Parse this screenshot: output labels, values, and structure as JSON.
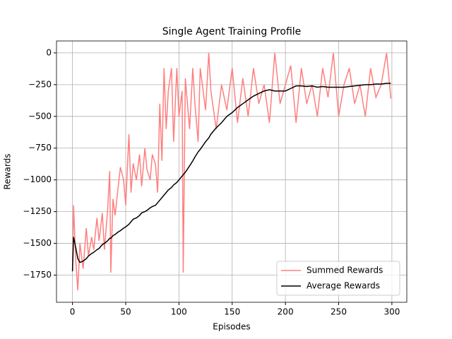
{
  "chart_data": {
    "type": "line",
    "title": "Single Agent Training Profile",
    "xlabel": "Episodes",
    "ylabel": "Rewards",
    "x": [
      0,
      1,
      3,
      5,
      7,
      10,
      13,
      15,
      18,
      20,
      23,
      25,
      28,
      30,
      33,
      35,
      36,
      38,
      40,
      43,
      45,
      48,
      50,
      53,
      55,
      57,
      60,
      63,
      65,
      68,
      70,
      73,
      75,
      78,
      80,
      82,
      84,
      86,
      88,
      90,
      93,
      95,
      98,
      100,
      103,
      104,
      106,
      110,
      113,
      115,
      118,
      120,
      125,
      128,
      130,
      135,
      140,
      145,
      150,
      155,
      160,
      165,
      170,
      175,
      180,
      185,
      190,
      195,
      200,
      205,
      210,
      215,
      220,
      225,
      230,
      235,
      240,
      245,
      250,
      255,
      260,
      265,
      270,
      275,
      280,
      285,
      290,
      295,
      299
    ],
    "series": [
      {
        "name": "Summed Rewards",
        "color": "#ff7f7f",
        "values": [
          -1720,
          -1200,
          -1620,
          -1870,
          -1500,
          -1700,
          -1380,
          -1600,
          -1450,
          -1550,
          -1300,
          -1480,
          -1260,
          -1550,
          -1240,
          -930,
          -1730,
          -1150,
          -1280,
          -1050,
          -900,
          -1000,
          -1200,
          -640,
          -1100,
          -870,
          -1000,
          -800,
          -1050,
          -750,
          -920,
          -1000,
          -800,
          -880,
          -1100,
          -400,
          -850,
          -120,
          -600,
          -300,
          -120,
          -700,
          -120,
          -500,
          -300,
          -1730,
          -200,
          -600,
          -120,
          -400,
          -700,
          -120,
          -450,
          0,
          -300,
          -600,
          -250,
          -450,
          -120,
          -550,
          -200,
          -500,
          -120,
          -400,
          -250,
          -550,
          0,
          -400,
          -250,
          -100,
          -550,
          -120,
          -400,
          -250,
          -500,
          -120,
          -350,
          0,
          -500,
          -250,
          -120,
          -400,
          -250,
          -500,
          -120,
          -350,
          -250,
          0,
          -360
        ]
      },
      {
        "name": "Average Rewards",
        "color": "#000000",
        "values": [
          -1720,
          -1450,
          -1530,
          -1620,
          -1650,
          -1640,
          -1620,
          -1600,
          -1580,
          -1570,
          -1550,
          -1540,
          -1510,
          -1500,
          -1480,
          -1460,
          -1460,
          -1440,
          -1430,
          -1410,
          -1400,
          -1380,
          -1370,
          -1350,
          -1330,
          -1310,
          -1300,
          -1280,
          -1260,
          -1250,
          -1240,
          -1220,
          -1210,
          -1200,
          -1180,
          -1160,
          -1140,
          -1120,
          -1100,
          -1080,
          -1060,
          -1040,
          -1020,
          -1000,
          -970,
          -960,
          -940,
          -890,
          -850,
          -820,
          -780,
          -760,
          -700,
          -670,
          -640,
          -590,
          -550,
          -500,
          -470,
          -430,
          -400,
          -370,
          -340,
          -320,
          -300,
          -290,
          -300,
          -300,
          -300,
          -280,
          -260,
          -260,
          -265,
          -260,
          -270,
          -265,
          -270,
          -270,
          -270,
          -270,
          -265,
          -260,
          -255,
          -250,
          -250,
          -245,
          -245,
          -240,
          -240
        ]
      }
    ],
    "xlim": [
      -15,
      314
    ],
    "ylim": [
      -1964,
      94
    ],
    "xticks": [
      0,
      50,
      100,
      150,
      200,
      250,
      300
    ],
    "yticks": [
      {
        "value": -1750,
        "label": "−1750"
      },
      {
        "value": -1500,
        "label": "−1500"
      },
      {
        "value": -1250,
        "label": "−1250"
      },
      {
        "value": -1000,
        "label": "−1000"
      },
      {
        "value": -750,
        "label": "−750"
      },
      {
        "value": -500,
        "label": "−500"
      },
      {
        "value": -250,
        "label": "−250"
      },
      0
    ],
    "grid": true,
    "legend": "lower right"
  }
}
